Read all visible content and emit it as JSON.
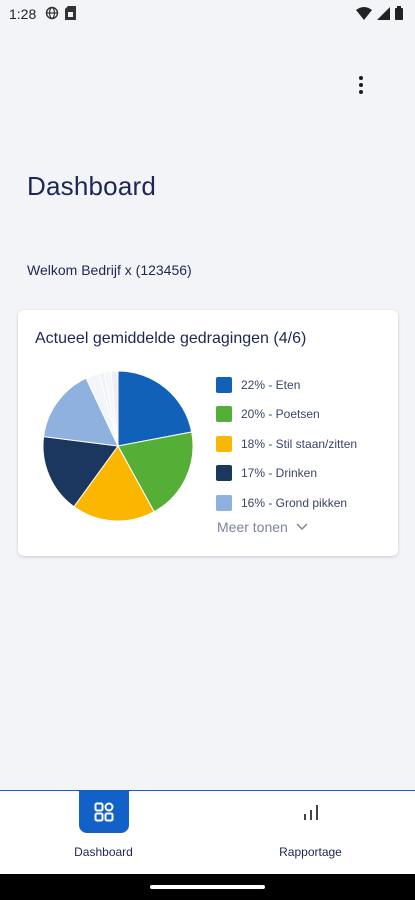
{
  "status_bar": {
    "time": "1:28"
  },
  "header": {
    "title": "Dashboard",
    "menu_icon": "more-vert-icon"
  },
  "welcome": {
    "text": "Welkom Bedrijf x (123456)"
  },
  "card": {
    "title": "Actueel gemiddelde gedragingen (4/6)",
    "more_label": "Meer tonen"
  },
  "chart_data": {
    "type": "pie",
    "title": "Actueel gemiddelde gedragingen (4/6)",
    "slices": [
      {
        "label": "22% - Eten",
        "value": 22,
        "color": "#1261b9"
      },
      {
        "label": "20% - Poetsen",
        "value": 20,
        "color": "#55ae36"
      },
      {
        "label": "18% - Stil staan/zitten",
        "value": 18,
        "color": "#fbb700"
      },
      {
        "label": "17% - Drinken",
        "value": 17,
        "color": "#1b375f"
      },
      {
        "label": "16% - Grond pikken",
        "value": 16,
        "color": "#8eb1e0"
      },
      {
        "value": 3,
        "color": "#f3f5f9"
      },
      {
        "value": 1,
        "color": "#eef1f6"
      },
      {
        "value": 1.5,
        "color": "#f5f6f9"
      },
      {
        "value": 1.5,
        "color": "#eceff5"
      }
    ]
  },
  "bottom_nav": {
    "items": [
      {
        "label": "Dashboard",
        "icon": "dashboard-grid-icon",
        "active": true
      },
      {
        "label": "Rapportage",
        "icon": "bar-chart-icon",
        "active": false
      }
    ]
  }
}
